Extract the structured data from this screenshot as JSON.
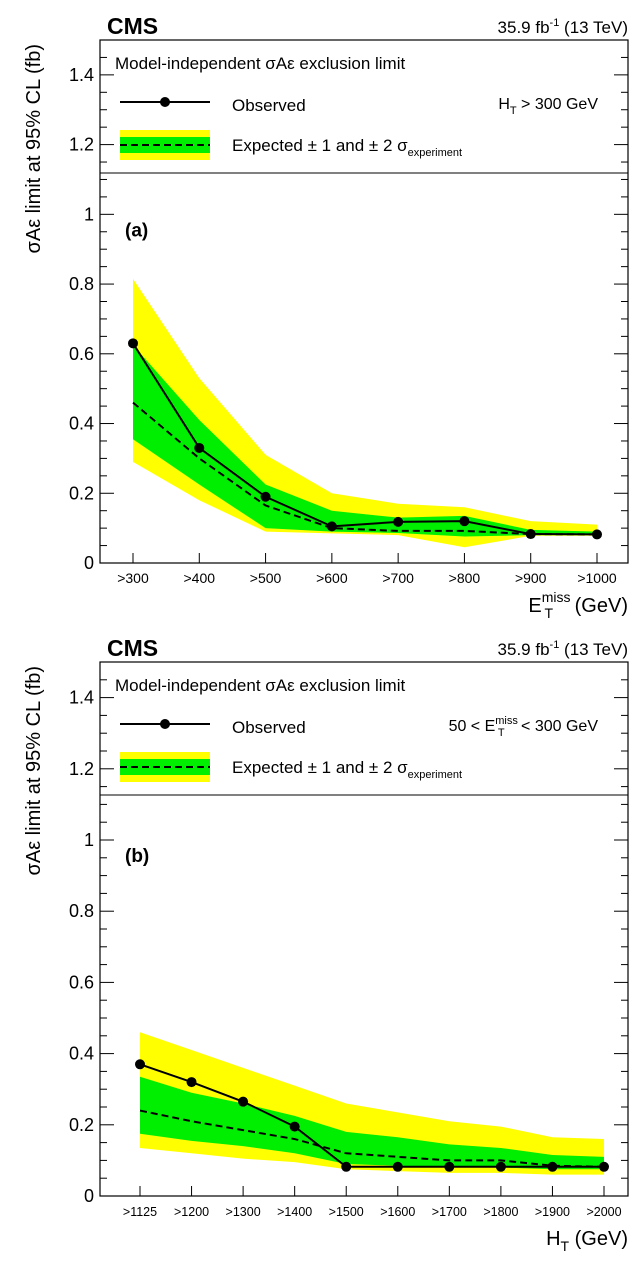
{
  "figure": {
    "experiment": "CMS",
    "lumi_value": "35.9 fb",
    "lumi_exponent": "-1",
    "energy": "(13 TeV)"
  },
  "legend": {
    "title": "Model-independent σAε exclusion limit",
    "observed": "Observed",
    "expected_prefix": "Expected ± 1 and ± 2 σ",
    "expected_sub": "experiment"
  },
  "colors": {
    "band_1sigma": "#00ee00",
    "band_2sigma": "#ffff00",
    "line": "#000000"
  },
  "chart_data": [
    {
      "type": "line",
      "panel_label": "(a)",
      "cut": {
        "prefix": "H",
        "sub": "T",
        "rest": " > 300 GeV"
      },
      "xlabel": {
        "main": "E",
        "sub": "T",
        "sup": "miss",
        "unit": " (GeV)"
      },
      "ylabel": "σAε limit at 95% CL (fb)",
      "ylim": [
        0,
        1.5
      ],
      "yticks": [
        "0",
        "0.2",
        "0.4",
        "0.6",
        "0.8",
        "1",
        "1.2",
        "1.4"
      ],
      "categories": [
        ">300",
        ">400",
        ">500",
        ">600",
        ">700",
        ">800",
        ">900",
        ">1000"
      ],
      "observed": [
        0.63,
        0.33,
        0.19,
        0.105,
        0.118,
        0.12,
        0.083,
        0.082
      ],
      "expected": [
        0.46,
        0.3,
        0.165,
        0.1,
        0.092,
        0.092,
        0.083,
        0.082
      ],
      "band_1sigma_low": [
        0.355,
        0.225,
        0.1,
        0.09,
        0.086,
        0.076,
        0.08,
        0.08
      ],
      "band_1sigma_high": [
        0.625,
        0.41,
        0.225,
        0.15,
        0.13,
        0.135,
        0.095,
        0.09
      ],
      "band_2sigma_low": [
        0.29,
        0.18,
        0.09,
        0.085,
        0.08,
        0.045,
        0.078,
        0.078
      ],
      "band_2sigma_high": [
        0.815,
        0.53,
        0.31,
        0.2,
        0.17,
        0.16,
        0.12,
        0.11
      ]
    },
    {
      "type": "line",
      "panel_label": "(b)",
      "cut": {
        "prefix": "50 < E",
        "sub": "T",
        "sup": "miss",
        "rest": " < 300 GeV"
      },
      "xlabel": {
        "main": "H",
        "sub": "T",
        "sup": "",
        "unit": " (GeV)"
      },
      "ylabel": "σAε limit at 95% CL (fb)",
      "ylim": [
        0,
        1.5
      ],
      "yticks": [
        "0",
        "0.2",
        "0.4",
        "0.6",
        "0.8",
        "1",
        "1.2",
        "1.4"
      ],
      "categories": [
        ">1125",
        ">1200",
        ">1300",
        ">1400",
        ">1500",
        ">1600",
        ">1700",
        ">1800",
        ">1900",
        ">2000"
      ],
      "observed": [
        0.37,
        0.32,
        0.265,
        0.195,
        0.082,
        0.082,
        0.082,
        0.082,
        0.082,
        0.082
      ],
      "expected": [
        0.24,
        0.21,
        0.185,
        0.16,
        0.12,
        0.11,
        0.1,
        0.1,
        0.085,
        0.082
      ],
      "band_1sigma_low": [
        0.175,
        0.155,
        0.14,
        0.12,
        0.09,
        0.085,
        0.08,
        0.08,
        0.075,
        0.075
      ],
      "band_1sigma_high": [
        0.335,
        0.29,
        0.26,
        0.225,
        0.18,
        0.165,
        0.145,
        0.135,
        0.115,
        0.11
      ],
      "band_2sigma_low": [
        0.135,
        0.12,
        0.105,
        0.095,
        0.075,
        0.07,
        0.065,
        0.065,
        0.06,
        0.06
      ],
      "band_2sigma_high": [
        0.46,
        0.41,
        0.36,
        0.31,
        0.26,
        0.235,
        0.21,
        0.195,
        0.165,
        0.16
      ]
    }
  ]
}
